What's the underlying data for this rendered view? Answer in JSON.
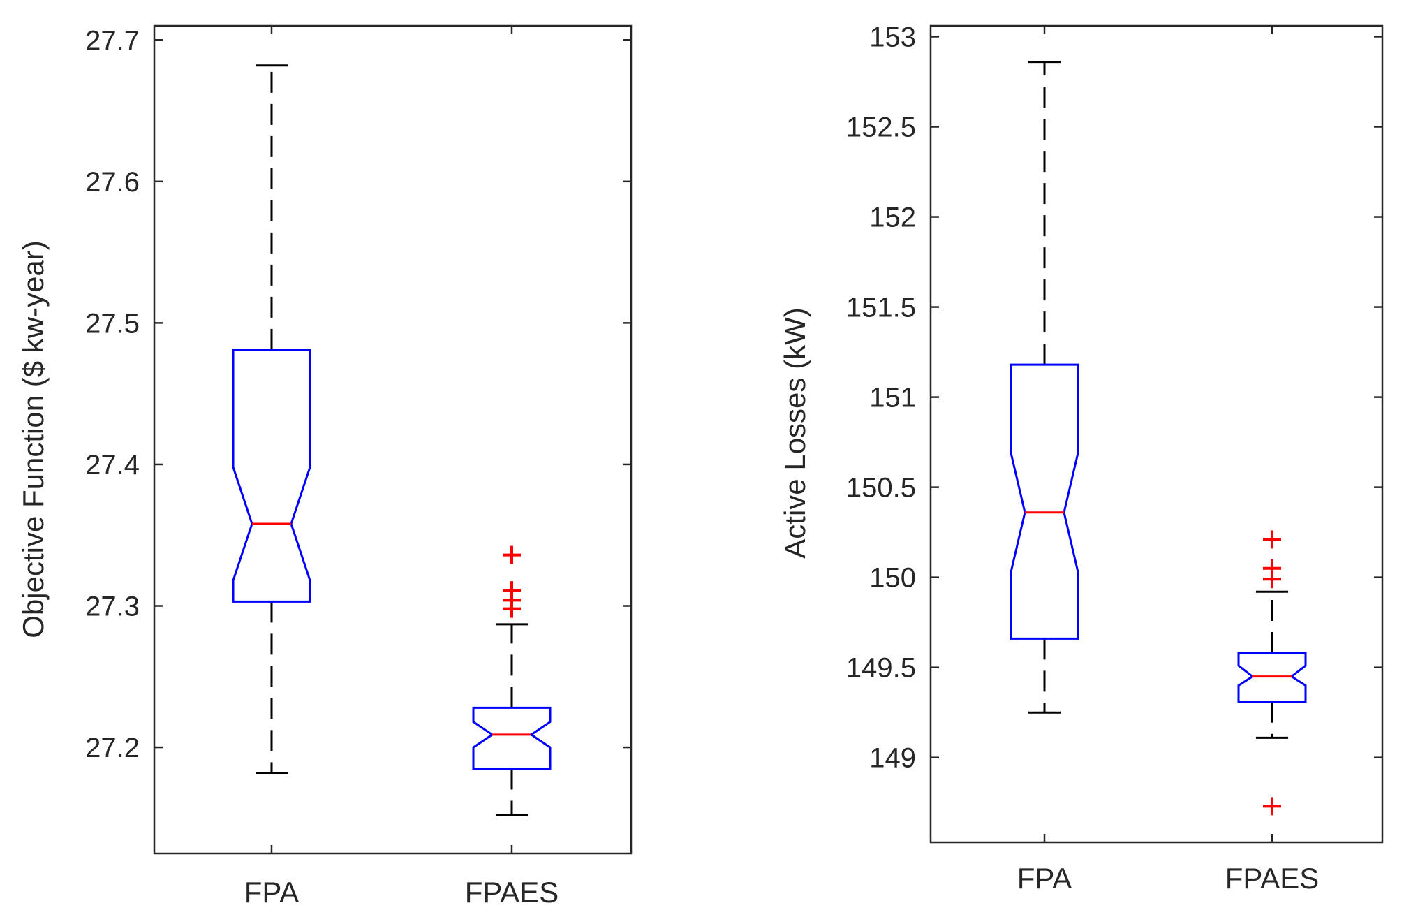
{
  "chart_data": [
    {
      "type": "boxplot",
      "title": "",
      "xlabel": "",
      "ylabel": "Objective Function ($ kw-year)",
      "ylim": [
        27.125,
        27.71
      ],
      "yticks": [
        27.2,
        27.3,
        27.4,
        27.5,
        27.6,
        27.7
      ],
      "ytick_labels": [
        "27.2",
        "27.3",
        "27.4",
        "27.5",
        "27.6",
        "27.7"
      ],
      "grid": false,
      "notched": true,
      "categories": [
        "FPA",
        "FPAES"
      ],
      "boxes": [
        {
          "category": "FPA",
          "whisker_low": 27.182,
          "q1": 27.303,
          "median": 27.358,
          "q3": 27.481,
          "whisker_high": 27.682,
          "notch_low": 27.318,
          "notch_high": 27.398,
          "outliers": []
        },
        {
          "category": "FPAES",
          "whisker_low": 27.152,
          "q1": 27.185,
          "median": 27.209,
          "q3": 27.228,
          "whisker_high": 27.287,
          "notch_low": 27.2,
          "notch_high": 27.218,
          "outliers": [
            27.298,
            27.304,
            27.311,
            27.336
          ]
        }
      ],
      "colors": {
        "box": "#0000ff",
        "median": "#ff0000",
        "whisker": "#000000",
        "outlier": "#ff0000"
      }
    },
    {
      "type": "boxplot",
      "title": "",
      "xlabel": "",
      "ylabel": "Active Losses (kW)",
      "ylim": [
        148.53,
        153.06
      ],
      "yticks": [
        149,
        149.5,
        150,
        150.5,
        151,
        151.5,
        152,
        152.5,
        153
      ],
      "ytick_labels": [
        "149",
        "149.5",
        "150",
        "150.5",
        "151",
        "151.5",
        "152",
        "152.5",
        "153"
      ],
      "grid": false,
      "notched": true,
      "categories": [
        "FPA",
        "FPAES"
      ],
      "boxes": [
        {
          "category": "FPA",
          "whisker_low": 149.25,
          "q1": 149.66,
          "median": 150.36,
          "q3": 151.18,
          "whisker_high": 152.86,
          "notch_low": 150.03,
          "notch_high": 150.69,
          "outliers": []
        },
        {
          "category": "FPAES",
          "whisker_low": 149.11,
          "q1": 149.31,
          "median": 149.45,
          "q3": 149.58,
          "whisker_high": 149.92,
          "notch_low": 149.4,
          "notch_high": 149.51,
          "outliers": [
            148.73,
            149.99,
            150.05,
            150.21
          ]
        }
      ],
      "colors": {
        "box": "#0000ff",
        "median": "#ff0000",
        "whisker": "#000000",
        "outlier": "#ff0000"
      }
    }
  ]
}
